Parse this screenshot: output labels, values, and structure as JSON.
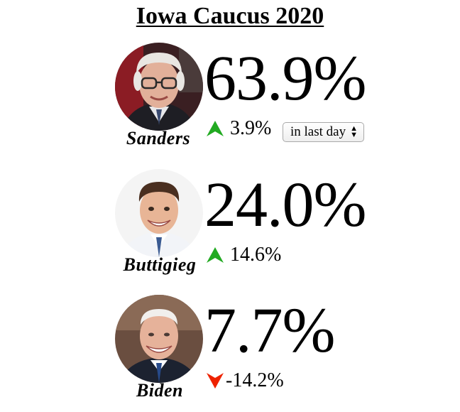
{
  "title": "Iowa Caucus 2020",
  "period_select": {
    "selected": "in last day"
  },
  "candidates": [
    {
      "name": "Sanders",
      "percent": "63.9%",
      "change": "3.9%",
      "direction": "up",
      "avatar_icon": "sanders-portrait"
    },
    {
      "name": "Buttigieg",
      "percent": "24.0%",
      "change": "14.6%",
      "direction": "up",
      "avatar_icon": "buttigieg-portrait"
    },
    {
      "name": "Biden",
      "percent": "7.7%",
      "change": "-14.2%",
      "direction": "down",
      "avatar_icon": "biden-portrait"
    }
  ],
  "colors": {
    "up_arrow": "#22aa22",
    "down_arrow": "#ee2200"
  }
}
